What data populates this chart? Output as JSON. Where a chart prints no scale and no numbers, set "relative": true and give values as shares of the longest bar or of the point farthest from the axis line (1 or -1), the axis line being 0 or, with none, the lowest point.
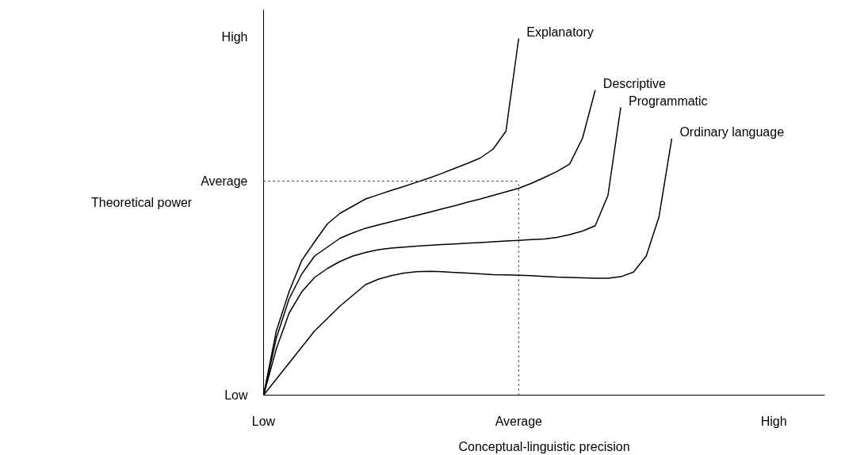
{
  "chart_data": {
    "type": "line",
    "relative": true,
    "xlabel": "Conceptual-linguistic precision",
    "ylabel": "Theoretical power",
    "categories": [
      "Low",
      null,
      null,
      null,
      null,
      null,
      null,
      null,
      null,
      null,
      null,
      null,
      null,
      null,
      null,
      null,
      null,
      null,
      null,
      null,
      "Average",
      null,
      null,
      null,
      null,
      null,
      null,
      null,
      null,
      null,
      null,
      null,
      null,
      null,
      null,
      null,
      null,
      null,
      null,
      null,
      "High",
      null,
      null,
      null,
      null
    ],
    "annotations": [
      "Low",
      "Average",
      "High"
    ],
    "marker": "none",
    "line_style": "solid",
    "ref_lines": [
      {
        "axis": "y",
        "value": 0.6,
        "line_style": "dotted",
        "color": "#000000"
      },
      {
        "axis": "x",
        "value": "Average",
        "line_style": "dotted",
        "color": "#000000"
      }
    ],
    "series": [
      {
        "name": "Explanatory",
        "color": "#000000",
        "values": [
          0,
          0.18,
          0.29,
          0.378,
          0.43,
          0.48,
          0.51,
          0.53,
          0.55,
          0.562,
          0.574,
          0.585,
          0.597,
          0.609,
          0.622,
          0.636,
          0.65,
          0.665,
          0.69,
          0.74,
          1.0,
          null,
          null,
          null,
          null,
          null,
          null,
          null,
          null,
          null,
          null,
          null,
          null,
          null,
          null,
          null,
          null,
          null,
          null,
          null,
          null,
          null,
          null,
          null,
          null
        ]
      },
      {
        "name": "Descriptive",
        "color": "#000000",
        "values": [
          0,
          0.16,
          0.27,
          0.34,
          0.39,
          0.415,
          0.44,
          0.455,
          0.468,
          0.477,
          0.486,
          0.495,
          0.504,
          0.513,
          0.522,
          0.531,
          0.541,
          0.55,
          0.56,
          0.57,
          0.58,
          0.594,
          0.61,
          0.627,
          0.648,
          0.72,
          0.855,
          null,
          null,
          null,
          null,
          null,
          null,
          null,
          null,
          null,
          null,
          null,
          null,
          null,
          null,
          null,
          null,
          null,
          null
        ]
      },
      {
        "name": "Programmatic",
        "color": "#000000",
        "values": [
          0,
          0.13,
          0.23,
          0.29,
          0.33,
          0.355,
          0.375,
          0.39,
          0.4,
          0.408,
          0.412,
          0.415,
          0.418,
          0.42,
          0.422,
          0.424,
          0.426,
          0.428,
          0.43,
          0.432,
          0.434,
          0.436,
          0.438,
          0.442,
          0.45,
          0.46,
          0.475,
          0.56,
          0.807,
          null,
          null,
          null,
          null,
          null,
          null,
          null,
          null,
          null,
          null,
          null,
          null,
          null,
          null,
          null,
          null
        ]
      },
      {
        "name": "Ordinary language",
        "color": "#000000",
        "values": [
          0,
          0.045,
          0.09,
          0.135,
          0.18,
          0.215,
          0.25,
          0.28,
          0.31,
          0.325,
          0.335,
          0.342,
          0.346,
          0.347,
          0.346,
          0.344,
          0.342,
          0.34,
          0.338,
          0.337,
          0.336,
          0.335,
          0.333,
          0.331,
          0.33,
          0.329,
          0.328,
          0.328,
          0.332,
          0.345,
          0.39,
          0.5,
          0.719,
          null,
          null,
          null,
          null,
          null,
          null,
          null,
          null,
          null,
          null,
          null,
          null
        ]
      }
    ]
  }
}
